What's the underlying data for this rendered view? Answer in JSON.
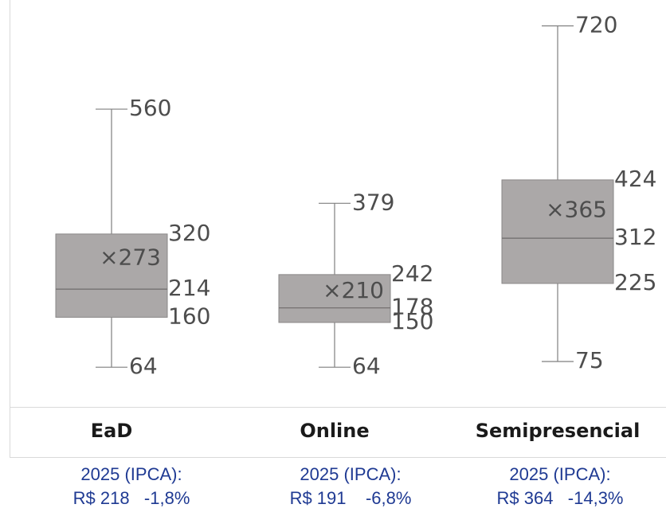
{
  "chart_data": {
    "type": "boxplot",
    "categories": [
      "EaD",
      "Online",
      "Semipresencial"
    ],
    "boxes": [
      {
        "category": "EaD",
        "min": 64,
        "q1": 160,
        "median": 214,
        "q3": 320,
        "max": 560,
        "mean": 273
      },
      {
        "category": "Online",
        "min": 64,
        "q1": 150,
        "median": 178,
        "q3": 242,
        "max": 379,
        "mean": 210
      },
      {
        "category": "Semipresencial",
        "min": 75,
        "q1": 225,
        "median": 312,
        "q3": 424,
        "max": 720,
        "mean": 365
      }
    ],
    "labels": {
      "EaD": {
        "max": "560",
        "q3": "320",
        "mean": "×273",
        "median": "214",
        "q1": "160",
        "min": "64"
      },
      "Online": {
        "max": "379",
        "q3": "242",
        "mean": "×210",
        "median": "178",
        "q1": "150",
        "min": "64"
      },
      "Semipresencial": {
        "max": "720",
        "q3": "424",
        "mean": "×365",
        "median": "312",
        "q1": "225",
        "min": "75"
      }
    },
    "colors": {
      "box_fill": "#aba8a8",
      "box_stroke": "#8a8787",
      "whisker": "#7f7f7f",
      "text": "#4d4d4d",
      "note": "#1f3a93"
    }
  },
  "notes": [
    {
      "line1": "2025 (IPCA):",
      "line2": "R$ 218   -1,8%"
    },
    {
      "line1": "2025 (IPCA):",
      "line2": "R$ 191    -6,8%"
    },
    {
      "line1": "2025 (IPCA):",
      "line2": "R$ 364   -14,3%"
    }
  ]
}
